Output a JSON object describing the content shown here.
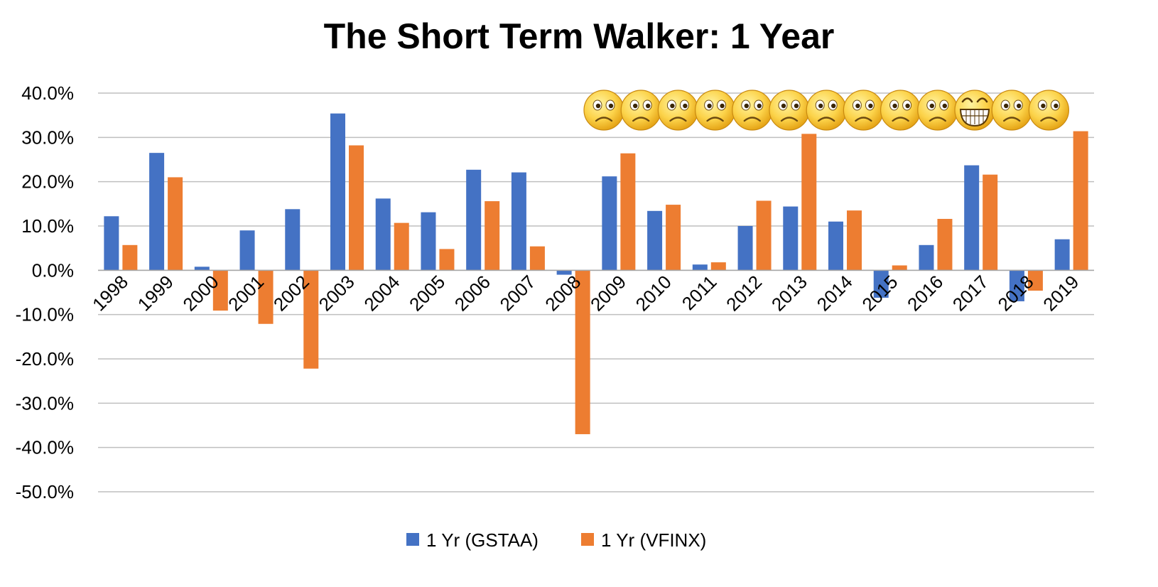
{
  "chart_data": {
    "type": "bar",
    "title": "The Short Term Walker: 1 Year",
    "xlabel": "",
    "ylabel": "",
    "ylim": [
      -50,
      40
    ],
    "yticks": [
      40,
      30,
      20,
      10,
      0,
      -10,
      -20,
      -30,
      -40,
      -50
    ],
    "ytick_labels": [
      "40.0%",
      "30.0%",
      "20.0%",
      "10.0%",
      "0.0%",
      "-10.0%",
      "-20.0%",
      "-30.0%",
      "-40.0%",
      "-50.0%"
    ],
    "grid": true,
    "legend_position": "bottom",
    "categories": [
      "1998",
      "1999",
      "2000",
      "2001",
      "2002",
      "2003",
      "2004",
      "2005",
      "2006",
      "2007",
      "2008",
      "2009",
      "2010",
      "2011",
      "2012",
      "2013",
      "2014",
      "2015",
      "2016",
      "2017",
      "2018",
      "2019"
    ],
    "series": [
      {
        "name": "1 Yr (GSTAA)",
        "color": "#4472C4",
        "values": [
          12.2,
          26.5,
          0.8,
          9.0,
          13.8,
          35.4,
          16.2,
          13.1,
          22.7,
          22.1,
          -1.0,
          21.2,
          13.4,
          1.3,
          10.0,
          14.4,
          11.0,
          -6.2,
          5.7,
          23.7,
          -7.0,
          7.0
        ]
      },
      {
        "name": "1 Yr (VFINX)",
        "color": "#ED7D31",
        "values": [
          5.7,
          21.0,
          -9.1,
          -12.1,
          -22.2,
          28.2,
          10.7,
          4.8,
          15.6,
          5.4,
          -37.0,
          26.4,
          14.8,
          1.8,
          15.7,
          30.8,
          13.5,
          1.1,
          11.6,
          21.6,
          -4.6,
          31.4
        ]
      }
    ],
    "annotations": {
      "emoji_faces": [
        "sad",
        "sad",
        "sad",
        "sad",
        "sad",
        "sad",
        "sad",
        "sad",
        "sad",
        "sad",
        "grin",
        "sad",
        "sad"
      ]
    }
  }
}
